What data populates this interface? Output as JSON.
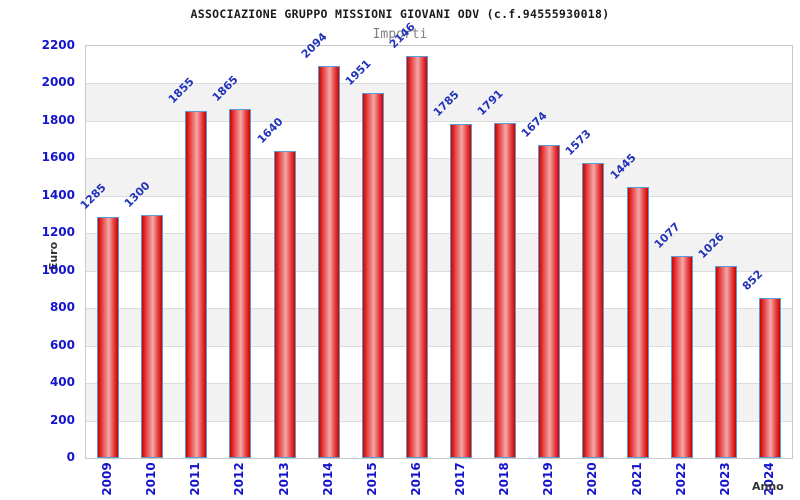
{
  "chart_data": {
    "type": "bar",
    "title": "ASSOCIAZIONE GRUPPO MISSIONI GIOVANI ODV (c.f.94555930018)",
    "subtitle": "Importi",
    "xlabel": "Anno",
    "ylabel": "Euro",
    "categories": [
      "2009",
      "2010",
      "2011",
      "2012",
      "2013",
      "2014",
      "2015",
      "2016",
      "2017",
      "2018",
      "2019",
      "2020",
      "2021",
      "2022",
      "2023",
      "2024"
    ],
    "values": [
      1285,
      1300,
      1855,
      1865,
      1640,
      2094,
      1951,
      2146,
      1785,
      1791,
      1674,
      1573,
      1445,
      1077,
      1026,
      852
    ],
    "ylim": [
      0,
      2200
    ],
    "yticks": [
      0,
      200,
      400,
      600,
      800,
      1000,
      1200,
      1400,
      1600,
      1800,
      2000,
      2200
    ],
    "grid": "horizontal-bands",
    "legend": "none",
    "colors": {
      "bar_edge": "#cc0000",
      "bar_mid": "#e84545",
      "bar_center": "#f2a8a8",
      "bar_border": "#5b9bd5",
      "tick_label": "#1414cc",
      "value_label": "#2233bb",
      "title": "#1a1a1a",
      "subtitle": "#808080",
      "axis_label": "#333333",
      "band_alt": "#f2f2f2",
      "gridline": "#dcdcdc",
      "plot_border": "#c9c9c9"
    }
  }
}
